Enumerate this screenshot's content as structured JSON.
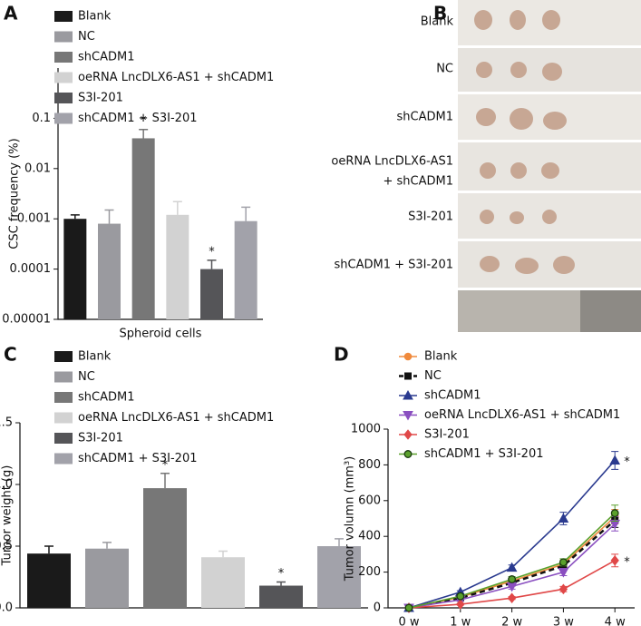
{
  "chart_data": [
    {
      "type": "bar",
      "label": "A",
      "log_scale": true,
      "xlabel": "Spheroid cells",
      "ylabel": "CSC frequency (%)",
      "categories": [
        "Blank",
        "NC",
        "shCADM1",
        "oeRNA LncDLX6-AS1 + shCADM1",
        "S3I-201",
        "shCADM1 + S3I-201"
      ],
      "colors": [
        "#1a1a1a",
        "#9a9a9f",
        "#777777",
        "#d2d2d2",
        "#555558",
        "#a2a2aa"
      ],
      "values": [
        0.001,
        0.0008,
        0.04,
        0.0012,
        0.0001,
        0.0009
      ],
      "errors": [
        0.0002,
        0.0007,
        0.02,
        0.001,
        5e-05,
        0.0008
      ],
      "ylim": [
        1e-05,
        1
      ],
      "yticks": [
        1e-05,
        0.0001,
        0.001,
        0.01,
        0.1
      ],
      "annotations": [
        {
          "text": "*",
          "category": "shCADM1"
        },
        {
          "text": "*",
          "category": "S3I-201"
        }
      ]
    },
    {
      "type": "bar",
      "label": "C",
      "log_scale": false,
      "ylabel": "Tumor weight (g)",
      "categories": [
        "Blank",
        "NC",
        "shCADM1",
        "oeRNA LncDLX6-AS1 + shCADM1",
        "S3I-201",
        "shCADM1 + S3I-201"
      ],
      "colors": [
        "#1a1a1a",
        "#9a9a9f",
        "#777777",
        "#d2d2d2",
        "#555558",
        "#a2a2aa"
      ],
      "values": [
        0.44,
        0.48,
        0.97,
        0.41,
        0.18,
        0.5
      ],
      "errors": [
        0.06,
        0.05,
        0.12,
        0.05,
        0.03,
        0.06
      ],
      "ylim": [
        0,
        1.5
      ],
      "yticks": [
        {
          "value": 0,
          "label": "0.0"
        },
        0.5,
        {
          "value": 1,
          "label": "1.0"
        },
        1.5
      ],
      "annotations": [
        {
          "text": "*",
          "category": "shCADM1"
        },
        {
          "text": "*",
          "category": "S3I-201"
        }
      ]
    },
    {
      "type": "line",
      "label": "D",
      "ylabel": "Tumor volumn (mm³)",
      "categories": [
        "0 w",
        "1 w",
        "2 w",
        "3 w",
        "4 w"
      ],
      "ylim": [
        0,
        1000
      ],
      "yticks": [
        0,
        200,
        400,
        600,
        800,
        1000
      ],
      "series": [
        {
          "name": "Blank",
          "color": "#f08a3c",
          "marker": "circle",
          "values": [
            0,
            60,
            150,
            245,
            510
          ],
          "errors": [
            0,
            8,
            15,
            20,
            40
          ]
        },
        {
          "name": "NC",
          "color": "#111111",
          "marker": "square",
          "dashed": true,
          "values": [
            0,
            55,
            140,
            235,
            490
          ],
          "errors": [
            0,
            8,
            15,
            20,
            40
          ]
        },
        {
          "name": "shCADM1",
          "color": "#2a3a8f",
          "marker": "triangle",
          "values": [
            0,
            88,
            225,
            500,
            825
          ],
          "errors": [
            0,
            8,
            15,
            35,
            50
          ]
        },
        {
          "name": "oeRNA LncDLX6-AS1 + shCADM1",
          "color": "#8a4fc0",
          "marker": "triangle-down",
          "values": [
            0,
            45,
            120,
            200,
            470
          ],
          "errors": [
            0,
            8,
            15,
            20,
            40
          ]
        },
        {
          "name": "S3I-201",
          "color": "#e04848",
          "marker": "diamond",
          "values": [
            0,
            20,
            55,
            105,
            265
          ],
          "errors": [
            0,
            5,
            8,
            15,
            35
          ]
        },
        {
          "name": "shCADM1 + S3I-201",
          "color": "#5aa02c",
          "marker": "circle-edge",
          "values": [
            0,
            65,
            160,
            255,
            530
          ],
          "errors": [
            0,
            8,
            15,
            20,
            45
          ]
        }
      ],
      "annotations": [
        {
          "text": "*",
          "series": "shCADM1"
        },
        {
          "text": "*",
          "series": "S3I-201"
        }
      ]
    }
  ],
  "photo": {
    "label": "B",
    "rows": [
      [
        "Blank"
      ],
      [
        "NC"
      ],
      [
        "shCADM1"
      ],
      [
        "oeRNA LncDLX6-AS1",
        "+ shCADM1"
      ],
      [
        "S3I-201"
      ],
      [
        "shCADM1 + S3I-201"
      ]
    ]
  }
}
